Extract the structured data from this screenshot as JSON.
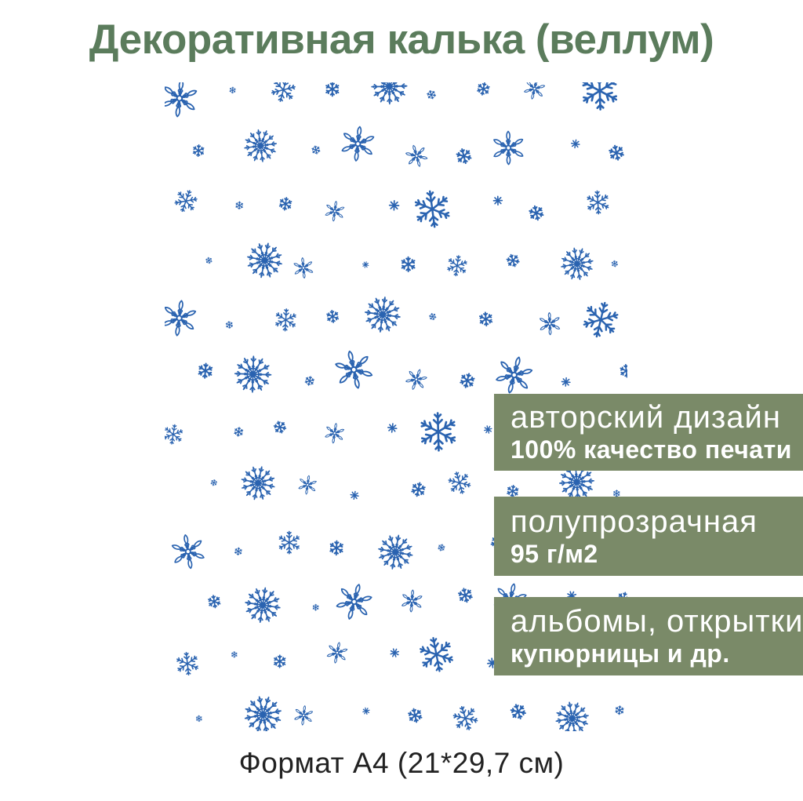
{
  "page": {
    "title": "Декоративная калька (веллум)",
    "caption": "Формат А4 (21*29,7 см)"
  },
  "badges": [
    {
      "line1": "авторский дизайн",
      "line2": "100% качество печати"
    },
    {
      "line1": "полупрозрачная",
      "line2": "95 г/м2"
    },
    {
      "line1": "альбомы, открытки,",
      "line2": "купюрницы и др."
    }
  ],
  "pattern": {
    "icon": "snowflake-icon",
    "description": "scattered blue snowflakes printed on a white A4 vellum sheet"
  },
  "colors": {
    "background": "#ffffff",
    "title_green": "#5b7c5c",
    "badge_green": "#7a8a68",
    "badge_text": "#ffffff",
    "snowflake_blue": "#2a63b0",
    "caption_dark": "#222222"
  }
}
